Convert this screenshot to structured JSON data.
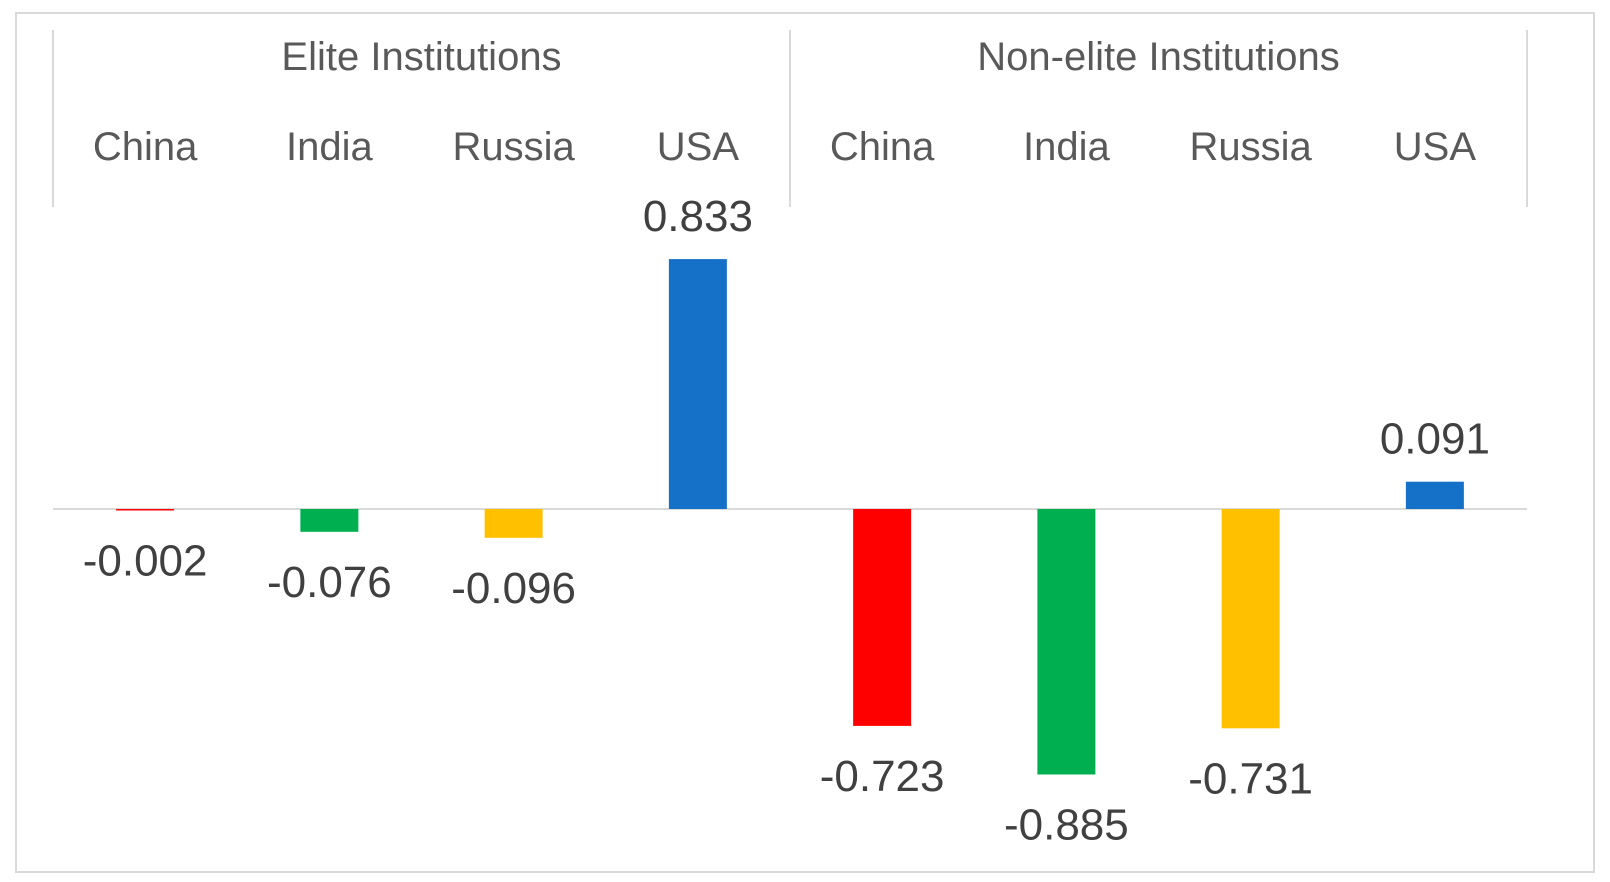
{
  "chart_data": {
    "type": "bar",
    "groups": [
      {
        "name": "Elite Institutions",
        "categories": [
          "China",
          "India",
          "Russia",
          "USA"
        ],
        "values": [
          -0.002,
          -0.076,
          -0.096,
          0.833
        ]
      },
      {
        "name": "Non-elite Institutions",
        "categories": [
          "China",
          "India",
          "Russia",
          "USA"
        ],
        "values": [
          -0.723,
          -0.885,
          -0.731,
          0.091
        ]
      }
    ],
    "data_labels": [
      [
        "-0.002",
        "-0.076",
        "-0.096",
        "0.833"
      ],
      [
        "-0.723",
        "-0.885",
        "-0.731",
        "0.091"
      ]
    ],
    "colors": {
      "China": "#FF0000",
      "India": "#00B050",
      "Russia": "#FFC000",
      "USA": "#1570C8"
    },
    "ylim": [
      -0.885,
      0.833
    ],
    "x_axis_position": "top",
    "grid": false,
    "legend": "none",
    "title": "",
    "xlabel": "",
    "ylabel": ""
  }
}
